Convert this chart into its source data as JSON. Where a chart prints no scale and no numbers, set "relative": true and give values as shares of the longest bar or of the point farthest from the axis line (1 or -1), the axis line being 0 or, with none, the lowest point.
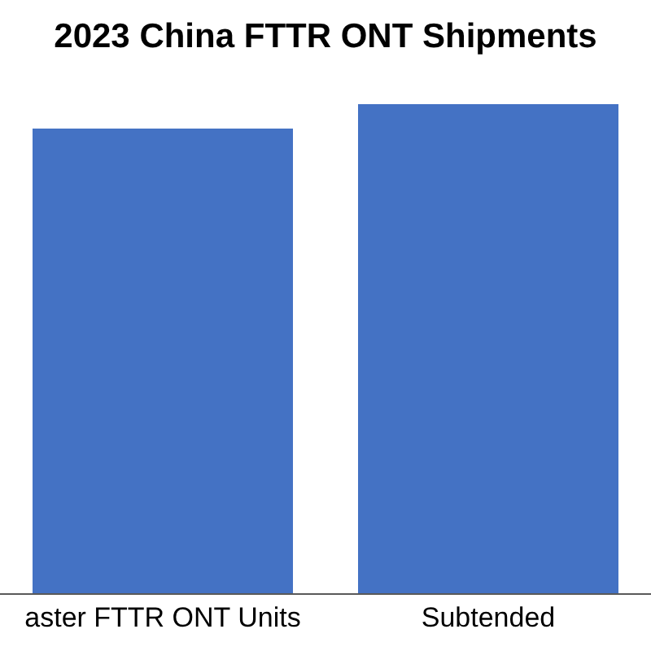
{
  "chart_data": {
    "type": "bar",
    "title": "2023 China FTTR ONT Shipments",
    "categories": [
      "aster FTTR ONT Units",
      "Subtended"
    ],
    "values": [
      0.95,
      1
    ],
    "color": "#4472c4",
    "relative": true
  }
}
